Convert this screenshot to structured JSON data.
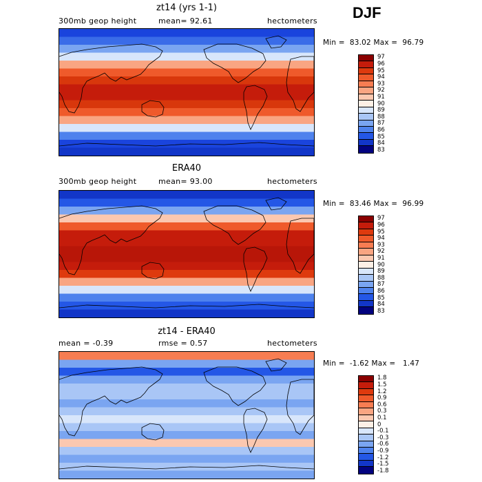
{
  "season": "DJF",
  "land_color": "#000000",
  "panels": [
    {
      "title": "zt14 (yrs 1-1)",
      "left_label": "300mb geop height",
      "middle_label": "mean=  92.61",
      "right_label": "hectometers",
      "minmax": "Min =  83.02 Max =  96.79",
      "colorbar": {
        "labels": [
          "97",
          "96",
          "95",
          "94",
          "93",
          "92",
          "91",
          "90",
          "89",
          "88",
          "87",
          "86",
          "85",
          "84",
          "83"
        ],
        "colors": [
          "#8b0000",
          "#c51c0b",
          "#de3a0e",
          "#ef5a2b",
          "#f77d52",
          "#f9a582",
          "#fbc8b0",
          "#fdf0e6",
          "#d8e6fb",
          "#a9c6f6",
          "#7aa5f1",
          "#4e82ed",
          "#2457e6",
          "#1236c8",
          "#02027f"
        ]
      },
      "bands": [
        "#1a44dd",
        "#3a6ce8",
        "#7aa5f1",
        "#d8e6fb",
        "#f9a582",
        "#ef5a2b",
        "#d8370c",
        "#c51c0b",
        "#c51c0b",
        "#d8370c",
        "#ef5a2b",
        "#f9a582",
        "#d8e6fb",
        "#4e82ed",
        "#1a44dd",
        "#1236c8"
      ]
    },
    {
      "title": "ERA40",
      "left_label": "300mb geop height",
      "middle_label": "mean=  93.00",
      "right_label": "hectometers",
      "minmax": "Min =  83.46 Max =  96.99",
      "colorbar": {
        "labels": [
          "97",
          "96",
          "95",
          "94",
          "93",
          "92",
          "91",
          "90",
          "89",
          "88",
          "87",
          "86",
          "85",
          "84",
          "83"
        ],
        "colors": [
          "#8b0000",
          "#c51c0b",
          "#de3a0e",
          "#ef5a2b",
          "#f77d52",
          "#f9a582",
          "#fbc8b0",
          "#fdf0e6",
          "#d8e6fb",
          "#a9c6f6",
          "#7aa5f1",
          "#4e82ed",
          "#2457e6",
          "#1236c8",
          "#02027f"
        ]
      },
      "bands": [
        "#1236c8",
        "#2457e6",
        "#7aa5f1",
        "#fbc8b0",
        "#ef5a2b",
        "#c51c0b",
        "#c51c0b",
        "#b81608",
        "#b81608",
        "#c51c0b",
        "#de3a0e",
        "#f9a582",
        "#d8e6fb",
        "#4e82ed",
        "#2457e6",
        "#1236c8"
      ]
    },
    {
      "title": "zt14 - ERA40",
      "left_label": "mean =  -0.39",
      "middle_label": "rmse =   0.57",
      "right_label": "hectometers",
      "minmax": "Min =  -1.62 Max =   1.47",
      "colorbar": {
        "labels": [
          "1.8",
          "1.5",
          "1.2",
          "0.9",
          "0.6",
          "0.3",
          "0.1",
          "0",
          "-0.1",
          "-0.3",
          "-0.6",
          "-0.9",
          "-1.2",
          "-1.5",
          "-1.8"
        ],
        "colors": [
          "#8b0000",
          "#c51c0b",
          "#de3a0e",
          "#ef5a2b",
          "#f77d52",
          "#f9a582",
          "#fbc8b0",
          "#fdf0e6",
          "#d8e6fb",
          "#a9c6f6",
          "#7aa5f1",
          "#4e82ed",
          "#2457e6",
          "#1236c8",
          "#02027f"
        ]
      },
      "bands": [
        "#f77d52",
        "#7aa5f1",
        "#2457e6",
        "#7aa5f1",
        "#a9c6f6",
        "#a9c6f6",
        "#7aa5f1",
        "#a9c6f6",
        "#d8e6fb",
        "#a9c6f6",
        "#7aa5f1",
        "#fbc8b0",
        "#a9c6f6",
        "#7aa5f1",
        "#a9c6f6",
        "#7aa5f1"
      ]
    }
  ]
}
